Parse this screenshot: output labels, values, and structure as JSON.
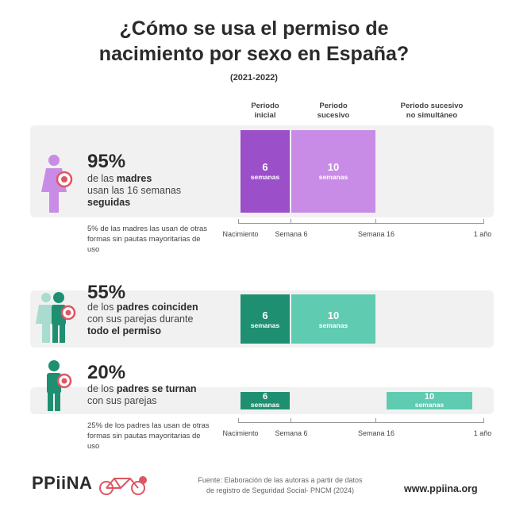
{
  "title_line1": "¿Cómo se usa el permiso de",
  "title_line2": "nacimiento por sexo en España?",
  "subtitle": "(2021-2022)",
  "columns": {
    "inicial": [
      "Periodo",
      "inicial"
    ],
    "sucesivo": [
      "Periodo",
      "sucesivo"
    ],
    "no_simultaneo": [
      "Periodo sucesivo",
      "no simultáneo"
    ]
  },
  "axis_ticks": [
    "Nacimiento",
    "Semana 6",
    "Semana 16",
    "1 año"
  ],
  "unit": "semanas",
  "rows": [
    {
      "pct": "95%",
      "desc_parts": [
        "de las ",
        "madres",
        " usan las 16 semanas ",
        "seguidas"
      ],
      "note": "5% de las madres las usan de otras formas sin pautas mayoritarias de uso",
      "color_dark": "#9b4fc8",
      "color_light": "#c98ce6",
      "icon": "mother-baby-icon"
    },
    {
      "pct": "55%",
      "desc_parts": [
        "de los ",
        "padres coinciden",
        " con sus parejas durante ",
        "todo el permiso"
      ],
      "color_dark": "#1f8f72",
      "color_light": "#5fcbb0",
      "icon": "father-partner-baby-icon"
    },
    {
      "pct": "20%",
      "desc_parts": [
        "de los ",
        "padres se turnan",
        " con sus parejas"
      ],
      "note": "25% de los padres las usan de otras formas sin pautas mayoritarias de uso",
      "color_dark": "#1f8f72",
      "color_light": "#5fcbb0",
      "icon": "father-baby-icon"
    }
  ],
  "chart_data": {
    "type": "bar",
    "x_axis": [
      "Nacimiento",
      "Semana 6",
      "Semana 16",
      "1 año"
    ],
    "series": [
      {
        "segments": [
          {
            "period": "Periodo inicial",
            "weeks": 6
          },
          {
            "period": "Periodo sucesivo",
            "weeks": 10
          }
        ]
      },
      {
        "segments": [
          {
            "period": "Periodo inicial",
            "weeks": 6
          },
          {
            "period": "Periodo sucesivo",
            "weeks": 10
          }
        ]
      },
      {
        "segments": [
          {
            "period": "Periodo inicial",
            "weeks": 6
          },
          {
            "period": "Periodo sucesivo no simultáneo",
            "weeks": 10
          }
        ]
      }
    ]
  },
  "footer": {
    "logo": "PPiiNA",
    "source_line1": "Fuente: Elaboración de las autoras a partir de datos",
    "source_line2": "de registro de Seguridad Social- PNCM (2024)",
    "url": "www.ppiina.org"
  }
}
